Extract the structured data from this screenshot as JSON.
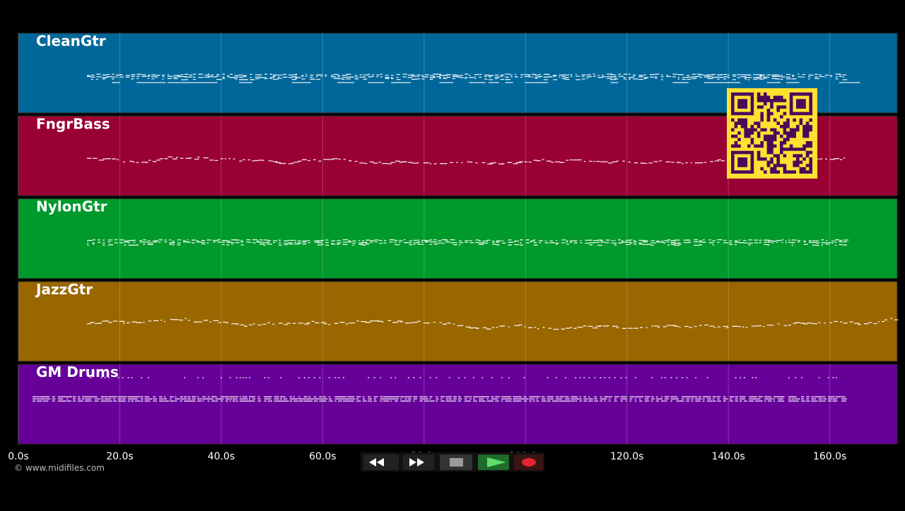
{
  "tracks": [
    {
      "name": "CleanGtr",
      "color": "#00679a"
    },
    {
      "name": "FngrBass",
      "color": "#990033"
    },
    {
      "name": "NylonGtr",
      "color": "#00992b"
    },
    {
      "name": "JazzGtr",
      "color": "#996600"
    },
    {
      "name": "GM Drums",
      "color": "#660099"
    }
  ],
  "timeline": {
    "range": [
      0,
      173.3
    ],
    "ticks": [
      {
        "value": 0,
        "label": "0.0s"
      },
      {
        "value": 20,
        "label": "20.0s"
      },
      {
        "value": 40,
        "label": "40.0s"
      },
      {
        "value": 60,
        "label": "60.0s"
      },
      {
        "value": 80,
        "label": "80.0s"
      },
      {
        "value": 100,
        "label": "100.0s"
      },
      {
        "value": 120,
        "label": "120.0s"
      },
      {
        "value": 140,
        "label": "140.0s"
      },
      {
        "value": 160,
        "label": "160.0s"
      }
    ]
  },
  "copyright": "© www.midifiles.com"
}
